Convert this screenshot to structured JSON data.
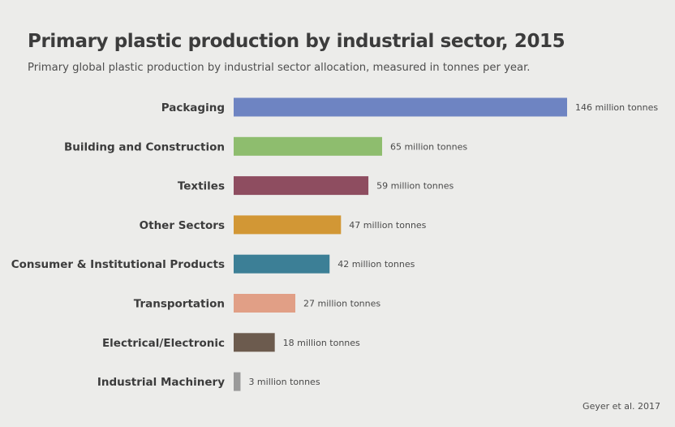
{
  "title": "Primary plastic production by industrial sector, 2015",
  "subtitle": "Primary global plastic production by industrial sector allocation, measured in tonnes per year.",
  "source": "Geyer et al. 2017",
  "chart_data": {
    "type": "bar",
    "orientation": "horizontal",
    "title": "Primary plastic production by industrial sector, 2015",
    "subtitle": "Primary global plastic production by industrial sector allocation, measured in tonnes per year.",
    "unit": "million tonnes",
    "categories": [
      "Packaging",
      "Building and Construction",
      "Textiles",
      "Other Sectors",
      "Consumer & Institutional Products",
      "Transportation",
      "Electrical/Electronic",
      "Industrial Machinery"
    ],
    "values": [
      146,
      65,
      59,
      47,
      42,
      27,
      18,
      3
    ],
    "data_labels": [
      "146 million tonnes",
      "65 million tonnes",
      "59 million tonnes",
      "47 million tonnes",
      "42 million tonnes",
      "27 million tonnes",
      "18 million tonnes",
      "3 million tonnes"
    ],
    "colors": [
      "#6e84c2",
      "#8ebd6e",
      "#8e4d60",
      "#d29735",
      "#3c7f96",
      "#e19f86",
      "#6c5b4e",
      "#9a9a9a"
    ],
    "xlim": [
      0,
      146
    ],
    "grid": false,
    "legend": "none"
  }
}
